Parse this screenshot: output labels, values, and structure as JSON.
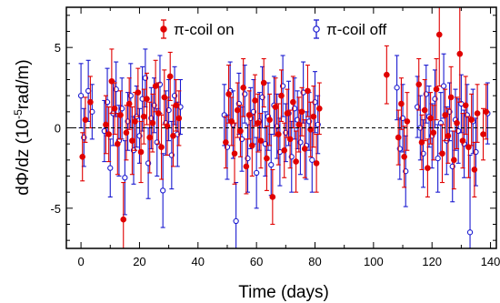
{
  "chart_data": {
    "type": "scatter",
    "title": "",
    "xlabel": "Time (days)",
    "ylabel": "dΦ/dz (10",
    "ylabel_exponent": "-5",
    "ylabel_unit": "rad/m)",
    "xlim": [
      -5,
      142
    ],
    "ylim": [
      -7.5,
      7.5
    ],
    "x_ticks": [
      0,
      20,
      40,
      60,
      80,
      100,
      120,
      140
    ],
    "x_tick_labels": [
      "0",
      "20",
      "40",
      "60",
      "80",
      "100",
      "120",
      "140"
    ],
    "y_ticks": [
      5,
      0,
      -5
    ],
    "y_tick_labels": [
      "5",
      "0",
      "-5"
    ],
    "reference_line": 0,
    "grid": false,
    "legend_position": "top",
    "colors": {
      "on": "#e00000",
      "off": "#1a1ad0"
    },
    "series": [
      {
        "name": "π-coil on",
        "marker": "filled-circle",
        "x": [
          0.5,
          1.5,
          3.2,
          8.5,
          9.5,
          10.5,
          11.5,
          12.5,
          13.5,
          14.5,
          15.5,
          16.5,
          17.5,
          18.5,
          19.5,
          20.5,
          21.5,
          22.5,
          23.5,
          24.5,
          25.5,
          26.5,
          27.5,
          28.5,
          29.5,
          30.5,
          31.5,
          32.5,
          33.5,
          49.5,
          50.5,
          51.5,
          52.5,
          53.5,
          54.5,
          55.5,
          56.5,
          57.5,
          58.5,
          59.5,
          60.5,
          61.5,
          62.5,
          63.5,
          64.5,
          65.5,
          66.5,
          67.5,
          68.5,
          69.5,
          70.5,
          71.5,
          72.5,
          73.5,
          74.5,
          75.5,
          76.5,
          77.5,
          78.5,
          79.5,
          80.5,
          81.5,
          104.5,
          108.5,
          109.5,
          110.5,
          111.5,
          115.5,
          116.5,
          117.5,
          118.5,
          119.5,
          120.5,
          121.5,
          122.5,
          123.5,
          124.5,
          125.5,
          126.5,
          127.5,
          128.5,
          129.5,
          130.5,
          131.5,
          132.5,
          133.5,
          134.5,
          135.5,
          137.5,
          138.5
        ],
        "y": [
          -1.8,
          0.5,
          1.6,
          0.2,
          -0.4,
          2.9,
          1.2,
          -1.0,
          0.8,
          -5.7,
          -0.3,
          1.5,
          -0.8,
          0.4,
          2.2,
          -1.5,
          0.7,
          1.8,
          -0.6,
          0.3,
          2.6,
          0.9,
          -1.2,
          1.9,
          0.1,
          3.2,
          -0.5,
          1.4,
          0.6,
          -0.9,
          2.1,
          0.4,
          -1.6,
          1.1,
          -0.2,
          2.5,
          -2.4,
          0.8,
          -1.1,
          1.7,
          0.3,
          -0.8,
          2.8,
          -1.9,
          0.5,
          -4.3,
          1.3,
          -0.4,
          2.0,
          -1.4,
          0.9,
          -0.7,
          1.6,
          -2.1,
          0.2,
          1.0,
          -1.3,
          2.3,
          -0.1,
          0.7,
          -2.2,
          1.2,
          3.3,
          -0.6,
          1.5,
          -1.8,
          0.4,
          2.7,
          -0.9,
          1.1,
          -2.5,
          0.6,
          -0.3,
          2.4,
          5.8,
          -1.6,
          0.8,
          -0.5,
          1.9,
          -2.0,
          0.3,
          4.6,
          -0.8,
          1.4,
          -1.2,
          0.5,
          -2.6,
          0.9,
          -0.4,
          1.0
        ],
        "err": [
          1.5,
          1.4,
          1.6,
          1.8,
          1.7,
          2.0,
          1.6,
          1.9,
          1.5,
          2.3,
          1.7,
          1.6,
          2.1,
          1.8,
          1.5,
          1.9,
          1.7,
          1.6,
          2.2,
          1.8,
          1.6,
          1.9,
          2.0,
          1.7,
          1.8,
          1.5,
          1.9,
          1.6,
          1.7,
          1.6,
          1.8,
          1.5,
          1.9,
          1.7,
          1.6,
          1.8,
          1.7,
          1.5,
          1.9,
          1.6,
          1.8,
          1.7,
          1.5,
          2.0,
          1.6,
          1.7,
          1.8,
          1.9,
          1.6,
          1.7,
          1.5,
          1.8,
          1.6,
          1.9,
          1.7,
          1.5,
          1.8,
          1.6,
          1.7,
          1.9,
          1.8,
          1.6,
          1.8,
          1.7,
          1.6,
          1.9,
          1.8,
          1.6,
          1.7,
          1.9,
          1.8,
          1.6,
          1.7,
          1.9,
          3.2,
          1.8,
          1.6,
          1.7,
          1.9,
          1.8,
          1.6,
          3.0,
          1.7,
          1.8,
          1.9,
          1.6,
          1.7,
          1.8,
          1.6,
          1.7
        ]
      },
      {
        "name": "π-coil off",
        "marker": "open-circle",
        "x": [
          0.0,
          1.0,
          2.5,
          3.8,
          8.0,
          9.0,
          10.0,
          11.0,
          12.0,
          13.0,
          14.0,
          15.0,
          16.0,
          17.0,
          18.0,
          19.0,
          20.0,
          21.0,
          22.0,
          23.0,
          24.0,
          25.0,
          26.0,
          27.0,
          28.0,
          29.0,
          30.0,
          31.0,
          32.0,
          33.0,
          34.0,
          49.0,
          50.0,
          51.0,
          52.0,
          53.0,
          54.0,
          55.0,
          56.0,
          57.0,
          58.0,
          59.0,
          60.0,
          61.0,
          62.0,
          63.0,
          64.0,
          65.0,
          66.0,
          67.0,
          68.0,
          69.0,
          70.0,
          71.0,
          72.0,
          73.0,
          74.0,
          75.0,
          76.0,
          77.0,
          78.0,
          79.0,
          80.0,
          81.0,
          108.0,
          109.0,
          110.0,
          111.0,
          115.0,
          116.0,
          117.0,
          118.0,
          119.0,
          120.0,
          121.0,
          122.0,
          123.0,
          124.0,
          125.0,
          126.0,
          127.0,
          128.0,
          129.0,
          130.0,
          131.0,
          132.0,
          133.0,
          134.0,
          135.0,
          139.0
        ],
        "y": [
          2.0,
          -0.6,
          2.3,
          1.0,
          -0.2,
          1.6,
          -2.5,
          0.9,
          2.4,
          -0.8,
          1.2,
          -3.1,
          0.4,
          2.0,
          -1.4,
          0.7,
          -0.5,
          1.8,
          3.1,
          -2.2,
          0.6,
          1.4,
          -0.9,
          2.7,
          -3.9,
          0.3,
          1.1,
          -1.7,
          2.0,
          -0.4,
          1.3,
          0.8,
          -1.2,
          2.3,
          0.2,
          -5.8,
          1.5,
          -0.7,
          2.1,
          -1.9,
          0.6,
          1.0,
          -2.8,
          0.4,
          1.9,
          -1.0,
          0.7,
          -2.3,
          1.4,
          0.1,
          -1.5,
          2.6,
          -0.3,
          0.9,
          -1.8,
          1.2,
          0.5,
          -0.9,
          2.2,
          -1.1,
          0.4,
          -2.0,
          1.6,
          0.2,
          2.5,
          -1.3,
          0.6,
          -2.7,
          1.3,
          0.0,
          -1.6,
          2.1,
          0.7,
          -0.5,
          1.8,
          -1.9,
          0.3,
          2.6,
          -0.8,
          1.0,
          -2.4,
          0.5,
          -0.2,
          1.5,
          -1.0,
          0.8,
          -6.5,
          0.4,
          -1.5,
          0.9
        ],
        "err": [
          2.0,
          1.8,
          1.9,
          1.7,
          1.9,
          2.1,
          1.8,
          2.0,
          1.7,
          2.2,
          1.9,
          2.3,
          1.8,
          2.0,
          2.1,
          1.9,
          1.7,
          2.0,
          1.8,
          2.2,
          1.9,
          1.7,
          2.1,
          1.8,
          2.3,
          2.0,
          1.9,
          2.1,
          1.8,
          2.0,
          1.7,
          1.9,
          2.0,
          1.8,
          2.1,
          2.4,
          1.9,
          2.0,
          1.8,
          2.1,
          1.9,
          2.0,
          2.2,
          1.8,
          1.9,
          2.0,
          2.1,
          1.9,
          1.8,
          2.0,
          2.1,
          1.9,
          1.8,
          2.0,
          2.2,
          1.9,
          1.8,
          2.0,
          1.9,
          2.1,
          1.8,
          2.0,
          1.9,
          1.8,
          2.0,
          1.9,
          2.1,
          2.2,
          1.9,
          2.0,
          2.1,
          1.8,
          1.9,
          2.0,
          1.8,
          2.1,
          1.9,
          2.0,
          2.1,
          1.8,
          2.2,
          1.9,
          2.0,
          1.8,
          2.1,
          1.9,
          4.8,
          2.0,
          2.1,
          1.9
        ]
      }
    ]
  }
}
